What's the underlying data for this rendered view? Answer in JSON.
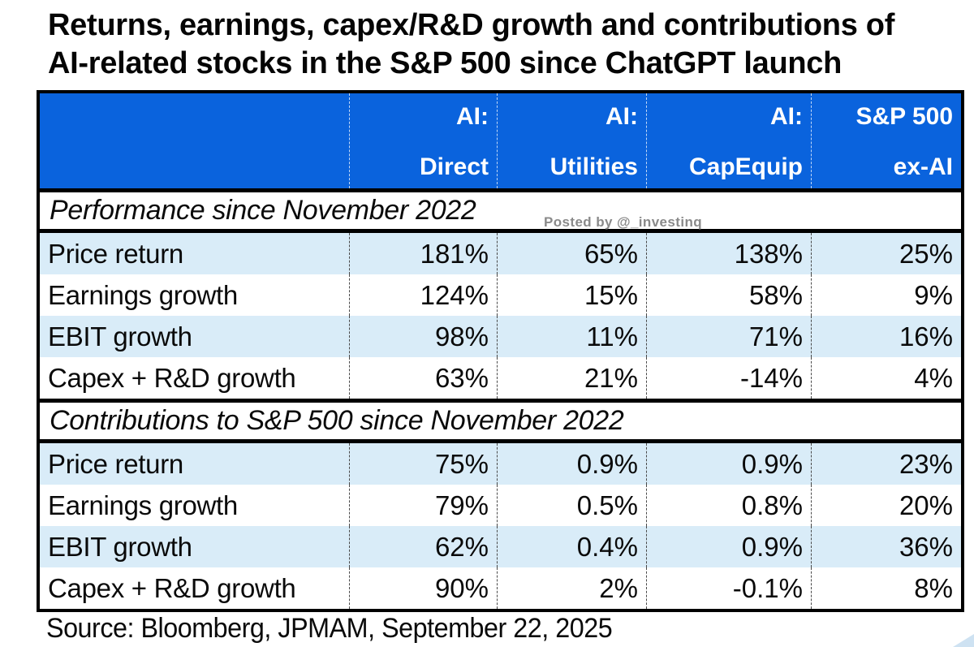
{
  "title": {
    "line1": "Returns, earnings, capex/R&D growth and contributions of",
    "line2": "AI-related stocks in the S&P 500 since ChatGPT launch"
  },
  "watermark": "Posted by @_investinq",
  "source_note": "Source: Bloomberg, JPMAM, September 22, 2025",
  "header": {
    "cells": [
      {
        "line1": "AI:",
        "line2": "Direct"
      },
      {
        "line1": "AI:",
        "line2": "Utilities"
      },
      {
        "line1": "AI:",
        "line2": "CapEquip"
      },
      {
        "line1": "S&P 500",
        "line2": "ex-AI"
      }
    ]
  },
  "colors": {
    "header_bg": "#0A63DD",
    "header_text": "#FFFFFF",
    "row_alt_bg": "#D9ECF8",
    "row_bg": "#FFFFFF",
    "border": "#000000",
    "watermark_text": "#8A8A8A"
  },
  "chart_data": {
    "type": "table",
    "title": "Returns, earnings, capex/R&D growth and contributions of AI-related stocks in the S&P 500 since ChatGPT launch",
    "columns": [
      "AI: Direct",
      "AI: Utilities",
      "AI: CapEquip",
      "S&P 500 ex-AI"
    ],
    "sections": [
      {
        "label": "Performance since November 2022",
        "rows": [
          {
            "label": "Price return",
            "values": [
              "181%",
              "65%",
              "138%",
              "25%"
            ]
          },
          {
            "label": "Earnings growth",
            "values": [
              "124%",
              "15%",
              "58%",
              "9%"
            ]
          },
          {
            "label": "EBIT growth",
            "values": [
              "98%",
              "11%",
              "71%",
              "16%"
            ]
          },
          {
            "label": "Capex + R&D growth",
            "values": [
              "63%",
              "21%",
              "-14%",
              "4%"
            ]
          }
        ]
      },
      {
        "label": "Contributions to S&P 500 since November 2022",
        "rows": [
          {
            "label": "Price return",
            "values": [
              "75%",
              "0.9%",
              "0.9%",
              "23%"
            ]
          },
          {
            "label": "Earnings growth",
            "values": [
              "79%",
              "0.5%",
              "0.8%",
              "20%"
            ]
          },
          {
            "label": "EBIT growth",
            "values": [
              "62%",
              "0.4%",
              "0.9%",
              "36%"
            ]
          },
          {
            "label": "Capex + R&D growth",
            "values": [
              "90%",
              "2%",
              "-0.1%",
              "8%"
            ]
          }
        ]
      }
    ],
    "source": "Source: Bloomberg, JPMAM, September 22, 2025"
  }
}
